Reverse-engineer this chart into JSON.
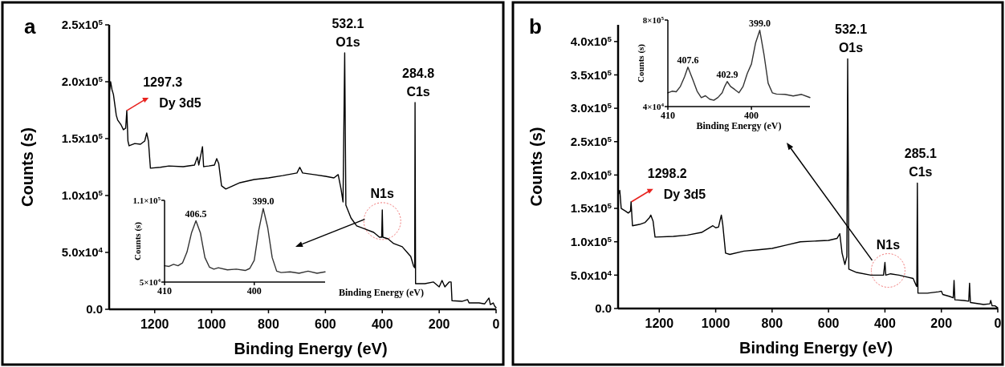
{
  "chart_data": [
    {
      "type": "line",
      "title": "a",
      "xlabel": "Binding Energy (eV)",
      "ylabel": "Counts (s)",
      "x": [
        1360,
        1355,
        1350,
        1345,
        1335,
        1330,
        1318,
        1310,
        1302,
        1298,
        1294,
        1290,
        1270,
        1250,
        1235,
        1228,
        1222,
        1215,
        1180,
        1150,
        1100,
        1060,
        1050,
        1045,
        1032,
        1028,
        1010,
        990,
        982,
        975,
        965,
        950,
        900,
        850,
        800,
        750,
        700,
        690,
        680,
        640,
        600,
        570,
        555,
        545,
        538,
        532.1,
        528,
        510,
        490,
        460,
        430,
        410,
        402,
        400,
        398,
        380,
        360,
        330,
        310,
        300,
        290,
        286,
        284.8,
        283,
        250,
        220,
        200,
        190,
        180,
        165,
        158,
        155,
        120,
        100,
        95,
        60,
        40,
        25,
        20,
        10,
        5,
        0
      ],
      "series": [
        {
          "color": "#000000",
          "values": [
            188800,
            200100,
            193000,
            188800,
            170500,
            166300,
            162000,
            157800,
            159200,
            174700,
            147900,
            143700,
            145700,
            145100,
            147900,
            155000,
            147900,
            124000,
            124800,
            126000,
            125400,
            126800,
            133900,
            126800,
            142900,
            125400,
            126000,
            126800,
            132400,
            128200,
            108500,
            105700,
            111300,
            114100,
            115500,
            117500,
            119800,
            124800,
            119800,
            118400,
            116900,
            115500,
            118400,
            105700,
            94400,
            225400,
            91600,
            80300,
            73300,
            70500,
            67600,
            63400,
            63400,
            87400,
            63400,
            62000,
            57800,
            55000,
            49300,
            46500,
            38000,
            36600,
            181800,
            22500,
            22500,
            24000,
            19700,
            25400,
            19700,
            24000,
            24000,
            7600,
            7000,
            8500,
            5600,
            5600,
            4800,
            9900,
            4200,
            5600,
            2800,
            1400
          ]
        }
      ],
      "xlim": [
        1360,
        0
      ],
      "ylim": [
        0,
        250000
      ],
      "xticks": [
        1200,
        1000,
        800,
        600,
        400,
        200,
        0
      ],
      "yticks": [
        {
          "value": 0,
          "label": "0.0"
        },
        {
          "value": 50000,
          "label": "5.0x10$^{4}$"
        },
        {
          "value": 100000,
          "label": "1.0x10$^{5}$"
        },
        {
          "value": 150000,
          "label": "1.5x10$^{5}$"
        },
        {
          "value": 200000,
          "label": "2.0x10$^{5}$"
        },
        {
          "value": 250000,
          "label": "2.5x10$^{5}$"
        }
      ],
      "annotations": [
        {
          "text": "1297.3",
          "x": 1297.3,
          "y": 174700
        },
        {
          "text": "Dy 3d5",
          "x": 1297.3,
          "y": 174700
        },
        {
          "text": "532.1",
          "x": 532.1,
          "y": 225400
        },
        {
          "text": "O1s",
          "x": 532.1,
          "y": 225400
        },
        {
          "text": "284.8",
          "x": 284.8,
          "y": 181800
        },
        {
          "text": "C1s",
          "x": 284.8,
          "y": 181800
        },
        {
          "text": "N1s",
          "x": 400,
          "y": 87400
        }
      ]
    },
    {
      "type": "line",
      "xlabel": "Binding Energy (eV)",
      "ylabel": "Counts (s)",
      "x": [
        410,
        409.5,
        409,
        408.5,
        408,
        407.5,
        407,
        406.5,
        406,
        405.5,
        405,
        404.5,
        404,
        403,
        402,
        401,
        400.5,
        400,
        399.5,
        399,
        398.5,
        398,
        397.5,
        397,
        396,
        395,
        394,
        393,
        392.1
      ],
      "series": [
        {
          "color": "#333333",
          "values": [
            62000,
            61500,
            63000,
            62000,
            64000,
            72000,
            86000,
            95000,
            86000,
            68000,
            61000,
            59500,
            60500,
            59000,
            59500,
            58500,
            60000,
            66000,
            88000,
            104000,
            90000,
            68000,
            58000,
            57000,
            57500,
            56500,
            58000,
            56500,
            57500
          ]
        }
      ],
      "xlim": [
        410,
        392.1
      ],
      "ylim": [
        50000,
        110000
      ],
      "xticks": [
        410,
        400
      ],
      "yticks": [
        {
          "value": 50000,
          "label": "5×10$^{4}$"
        },
        {
          "value": 110000,
          "label": "1.1×10$^{5}$"
        }
      ],
      "annotations": [
        {
          "text": "406.5",
          "x": 406.5,
          "y": 95000
        },
        {
          "text": "399.0",
          "x": 399.0,
          "y": 104000
        }
      ]
    },
    {
      "type": "line",
      "title": "b",
      "xlabel": "Binding Energy (eV)",
      "ylabel": "Counts (s)",
      "x": [
        1346,
        1340,
        1335,
        1320,
        1310,
        1302,
        1300,
        1295,
        1270,
        1250,
        1235,
        1230,
        1222,
        1215,
        1150,
        1100,
        1050,
        1010,
        1000,
        990,
        980,
        975,
        965,
        950,
        900,
        850,
        800,
        750,
        700,
        650,
        600,
        570,
        560,
        552,
        542,
        535,
        532.1,
        528,
        500,
        450,
        420,
        405,
        400,
        397,
        380,
        350,
        320,
        300,
        290,
        287,
        285.1,
        283,
        250,
        210,
        200,
        195,
        170,
        158,
        155,
        152,
        120,
        103,
        100,
        97,
        50,
        28,
        25,
        20,
        10,
        0
      ],
      "series": [
        {
          "color": "#000000",
          "values": [
            170000,
            177000,
            150000,
            146000,
            143000,
            146000,
            160000,
            124000,
            126000,
            129000,
            136000,
            140000,
            131000,
            107000,
            108000,
            110000,
            114000,
            124000,
            121000,
            122000,
            140000,
            126000,
            83000,
            81000,
            86000,
            88000,
            90000,
            95000,
            100000,
            101000,
            102000,
            105000,
            112000,
            83000,
            66000,
            78000,
            374000,
            59000,
            54000,
            50000,
            50000,
            50000,
            69000,
            50000,
            52000,
            50000,
            47000,
            45000,
            35000,
            33000,
            188000,
            23000,
            23000,
            25000,
            26000,
            21000,
            18000,
            16000,
            42000,
            13000,
            12000,
            11000,
            38000,
            9000,
            6000,
            7000,
            12000,
            4000,
            4000,
            1000
          ]
        }
      ],
      "xlim": [
        1346,
        0
      ],
      "ylim": [
        0,
        425000
      ],
      "xticks": [
        1200,
        1000,
        800,
        600,
        400,
        200,
        0
      ],
      "yticks": [
        {
          "value": 0,
          "label": "0.0"
        },
        {
          "value": 50000,
          "label": "5.0x10$^{4}$"
        },
        {
          "value": 100000,
          "label": "1.0x10$^{5}$"
        },
        {
          "value": 150000,
          "label": "1.5x10$^{5}$"
        },
        {
          "value": 200000,
          "label": "2.0x10$^{5}$"
        },
        {
          "value": 250000,
          "label": "2.5x10$^{5}$"
        },
        {
          "value": 300000,
          "label": "3.0x10$^{5}$"
        },
        {
          "value": 350000,
          "label": "3.5x10$^{5}$"
        },
        {
          "value": 400000,
          "label": "4.0x10$^{5}$"
        }
      ],
      "annotations": [
        {
          "text": "1298.2",
          "x": 1298.2,
          "y": 160000
        },
        {
          "text": "Dy 3d5",
          "x": 1298.2,
          "y": 160000
        },
        {
          "text": "532.1",
          "x": 532.1,
          "y": 374000
        },
        {
          "text": "O1s",
          "x": 532.1,
          "y": 374000
        },
        {
          "text": "285.1",
          "x": 285.1,
          "y": 188000
        },
        {
          "text": "C1s",
          "x": 285.1,
          "y": 188000
        },
        {
          "text": "N1s",
          "x": 400,
          "y": 69000
        }
      ]
    },
    {
      "type": "line",
      "xlabel": "Binding Energy (eV)",
      "ylabel": "Counts (s)",
      "x": [
        410,
        409.5,
        409,
        408.5,
        408,
        407.6,
        407,
        406.5,
        406,
        405.5,
        405,
        404.5,
        404,
        403.5,
        403.2,
        402.9,
        402.5,
        402,
        401.5,
        401,
        400.5,
        400,
        399.5,
        399,
        398.5,
        398,
        397.5,
        397,
        396,
        395,
        394,
        393
      ],
      "series": [
        {
          "color": "#333333",
          "values": [
            161000,
            175000,
            170000,
            217000,
            302000,
            386000,
            274000,
            175000,
            119000,
            135000,
            105000,
            95000,
            120000,
            161000,
            217000,
            260000,
            217000,
            190000,
            161000,
            217000,
            330000,
            414000,
            600000,
            710000,
            499000,
            245000,
            161000,
            150000,
            147000,
            133000,
            147000,
            119000
          ]
        }
      ],
      "xlim": [
        410,
        393
      ],
      "ylim": [
        40000,
        800000
      ],
      "xticks": [
        410,
        400
      ],
      "yticks": [
        {
          "value": 40000,
          "label": "4×10$^{4}$"
        },
        {
          "value": 800000,
          "label": "8×10$^{5}$"
        }
      ],
      "annotations": [
        {
          "text": "407.6",
          "x": 407.6,
          "y": 386000
        },
        {
          "text": "402.9",
          "x": 402.9,
          "y": 260000
        },
        {
          "text": "399.0",
          "x": 399.0,
          "y": 710000
        }
      ]
    }
  ]
}
